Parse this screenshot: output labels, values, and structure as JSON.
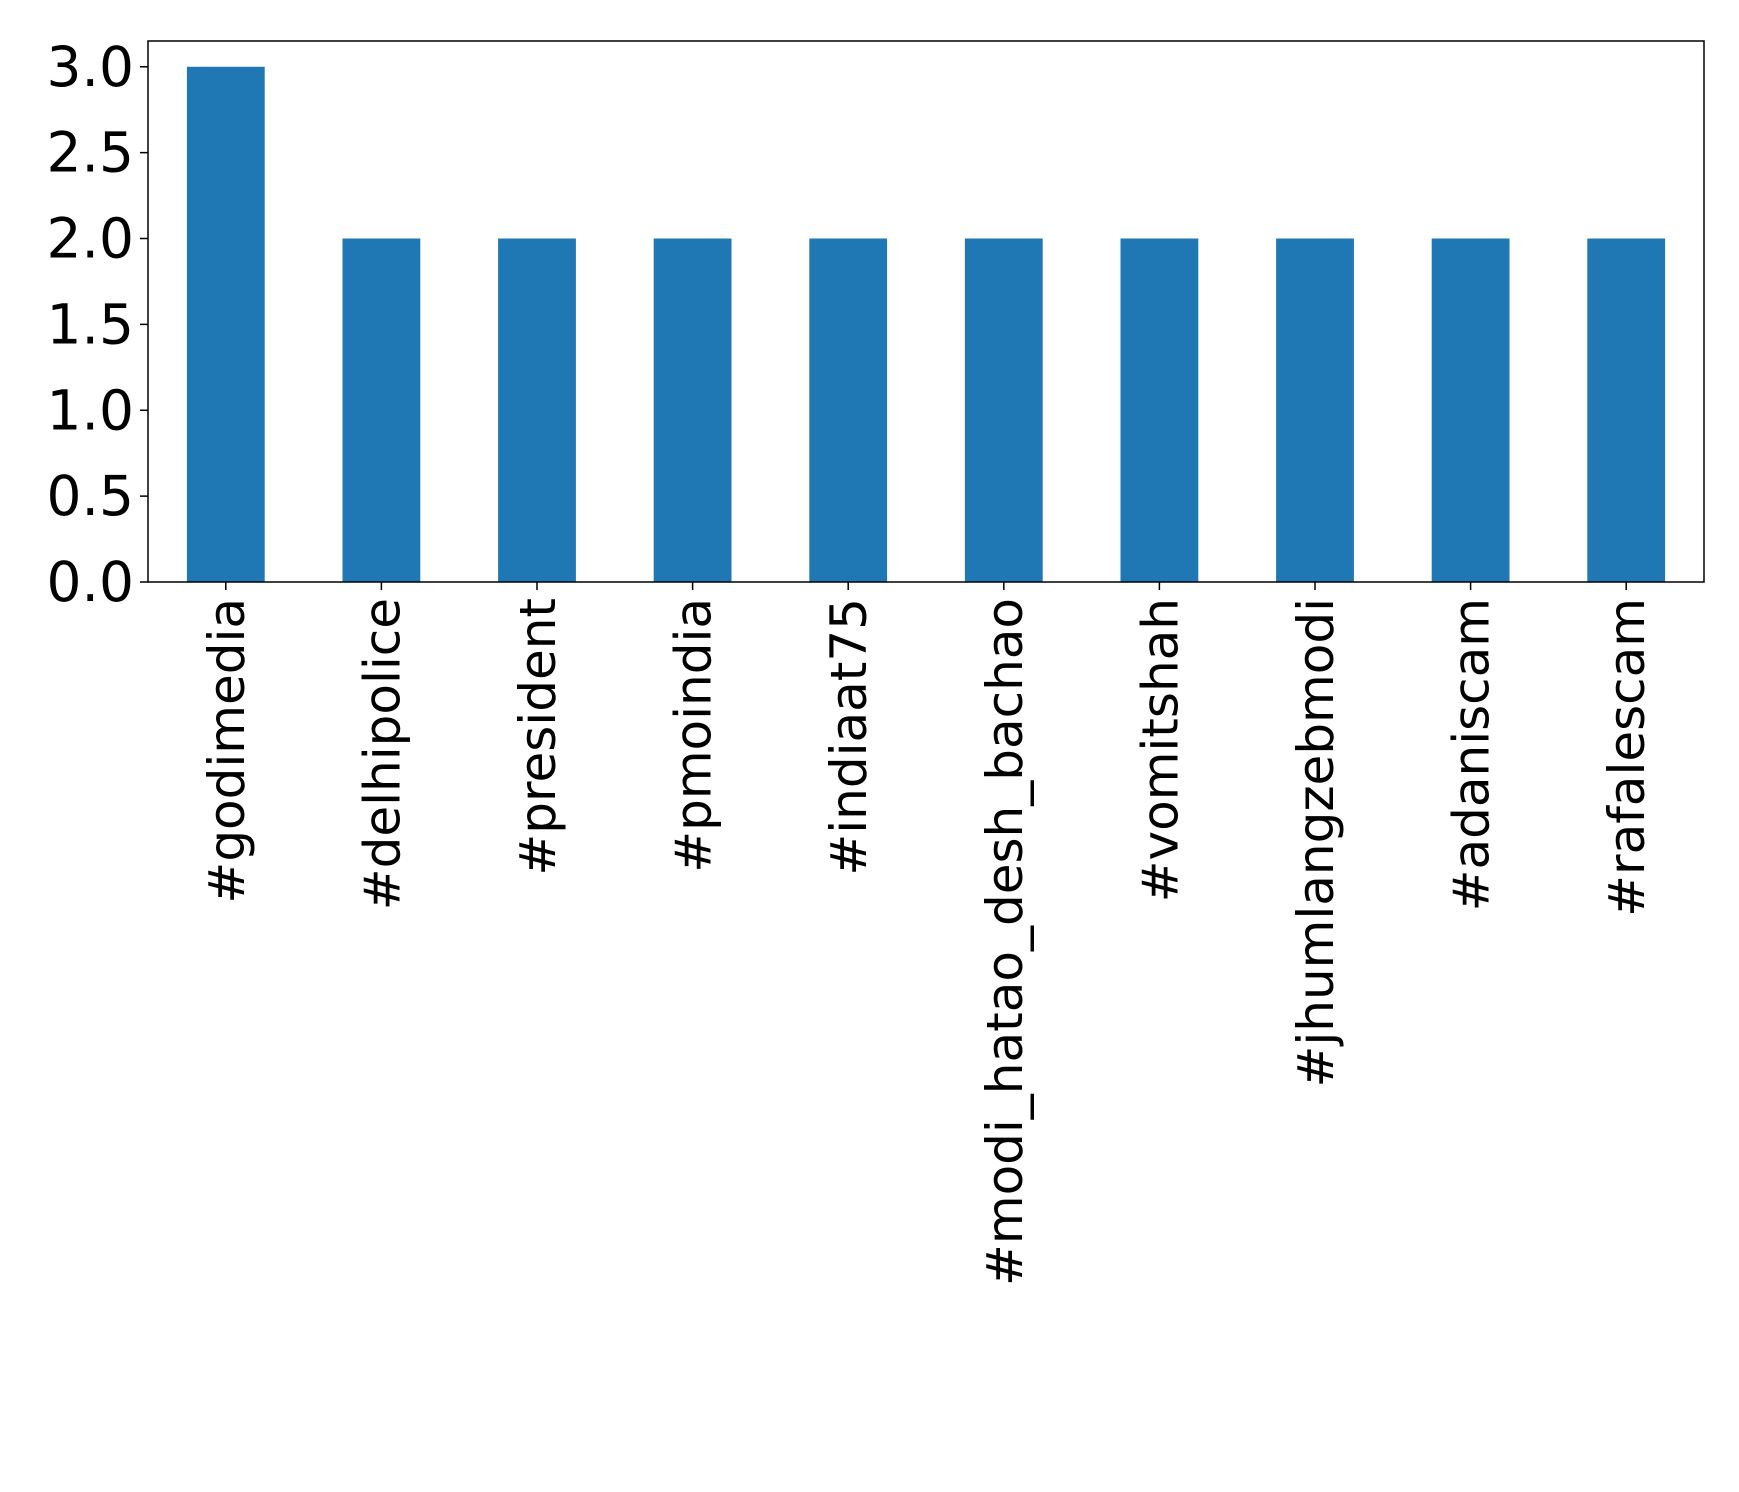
{
  "chart_data": {
    "type": "bar",
    "title": "",
    "xlabel": "",
    "ylabel": "",
    "categories": [
      "#godimedia",
      "#delhipolice",
      "#president",
      "#pmoindia",
      "#indiaat75",
      "#modi_hatao_desh_bachao",
      "#vomitshah",
      "#jhumlangzebmodi",
      "#adaniscam",
      "#rafalescam"
    ],
    "values": [
      3,
      2,
      2,
      2,
      2,
      2,
      2,
      2,
      2,
      2
    ],
    "ylim": [
      0,
      3.15
    ],
    "yticks": [
      0.0,
      0.5,
      1.0,
      1.5,
      2.0,
      2.5,
      3.0
    ],
    "ytick_labels": [
      "0.0",
      "0.5",
      "1.0",
      "1.5",
      "2.0",
      "2.5",
      "3.0"
    ],
    "bar_color": "#1f77b4",
    "grid": false,
    "legend": "none"
  }
}
